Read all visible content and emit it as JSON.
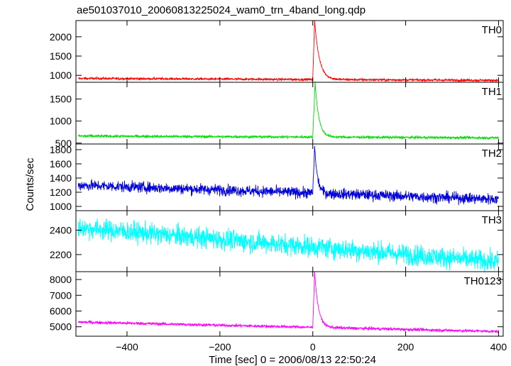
{
  "chart_data": {
    "type": "line",
    "title": "ae501037010_20060813225024_wam0_trn_4band_long.qdp",
    "xlabel": "Time [sec] 0 = 2006/08/13 22:50:24",
    "ylabel": "Counts/sec",
    "xlim": [
      -510,
      410
    ],
    "x_ticks": [
      -400,
      -200,
      0,
      200,
      400
    ],
    "x_tick_labels": [
      "−400",
      "−200",
      "0",
      "200",
      "400"
    ],
    "grid": false,
    "legend": "none",
    "panels": [
      {
        "name": "TH0",
        "color": "#ff0000",
        "ylim": [
          820,
          2420
        ],
        "y_ticks": [
          1000,
          1500,
          2000
        ],
        "y_tick_labels": [
          "1000",
          "1500",
          "2000"
        ],
        "baseline": [
          [
            -505,
            920
          ],
          [
            400,
            870
          ]
        ],
        "noise": 22,
        "burst": {
          "start": 0,
          "peak_time": 4,
          "peak": 2420,
          "decay": 10
        }
      },
      {
        "name": "TH1",
        "color": "#00dd00",
        "ylim": [
          480,
          1880
        ],
        "y_ticks": [
          500,
          1000,
          1500
        ],
        "y_tick_labels": [
          "500",
          "1000",
          "1500"
        ],
        "baseline": [
          [
            -505,
            660
          ],
          [
            400,
            620
          ]
        ],
        "noise": 22,
        "burst": {
          "start": 0,
          "peak_time": 5,
          "peak": 1880,
          "decay": 8
        }
      },
      {
        "name": "TH2",
        "color": "#0000dd",
        "ylim": [
          940,
          1880
        ],
        "y_ticks": [
          1000,
          1200,
          1400,
          1600,
          1800
        ],
        "y_tick_labels": [
          "1000",
          "1200",
          "1400",
          "1600",
          "1800"
        ],
        "baseline": [
          [
            -505,
            1300
          ],
          [
            400,
            1100
          ]
        ],
        "noise": 55,
        "burst": {
          "start": 0,
          "peak_time": 4,
          "peak": 1850,
          "decay": 6
        }
      },
      {
        "name": "TH3",
        "color": "#00ffff",
        "ylim": [
          2060,
          2560
        ],
        "y_ticks": [
          2200,
          2400
        ],
        "y_tick_labels": [
          "2200",
          "2400"
        ],
        "baseline": [
          [
            -505,
            2420
          ],
          [
            400,
            2140
          ]
        ],
        "noise": 60,
        "burst": null
      },
      {
        "name": "TH0123",
        "color": "#ff00ff",
        "ylim": [
          4400,
          8500
        ],
        "y_ticks": [
          5000,
          6000,
          7000,
          8000
        ],
        "y_tick_labels": [
          "5000",
          "6000",
          "7000",
          "8000"
        ],
        "baseline": [
          [
            -505,
            5300
          ],
          [
            400,
            4700
          ]
        ],
        "noise": 70,
        "burst": {
          "start": 0,
          "peak_time": 4,
          "peak": 8500,
          "decay": 8
        }
      }
    ]
  }
}
